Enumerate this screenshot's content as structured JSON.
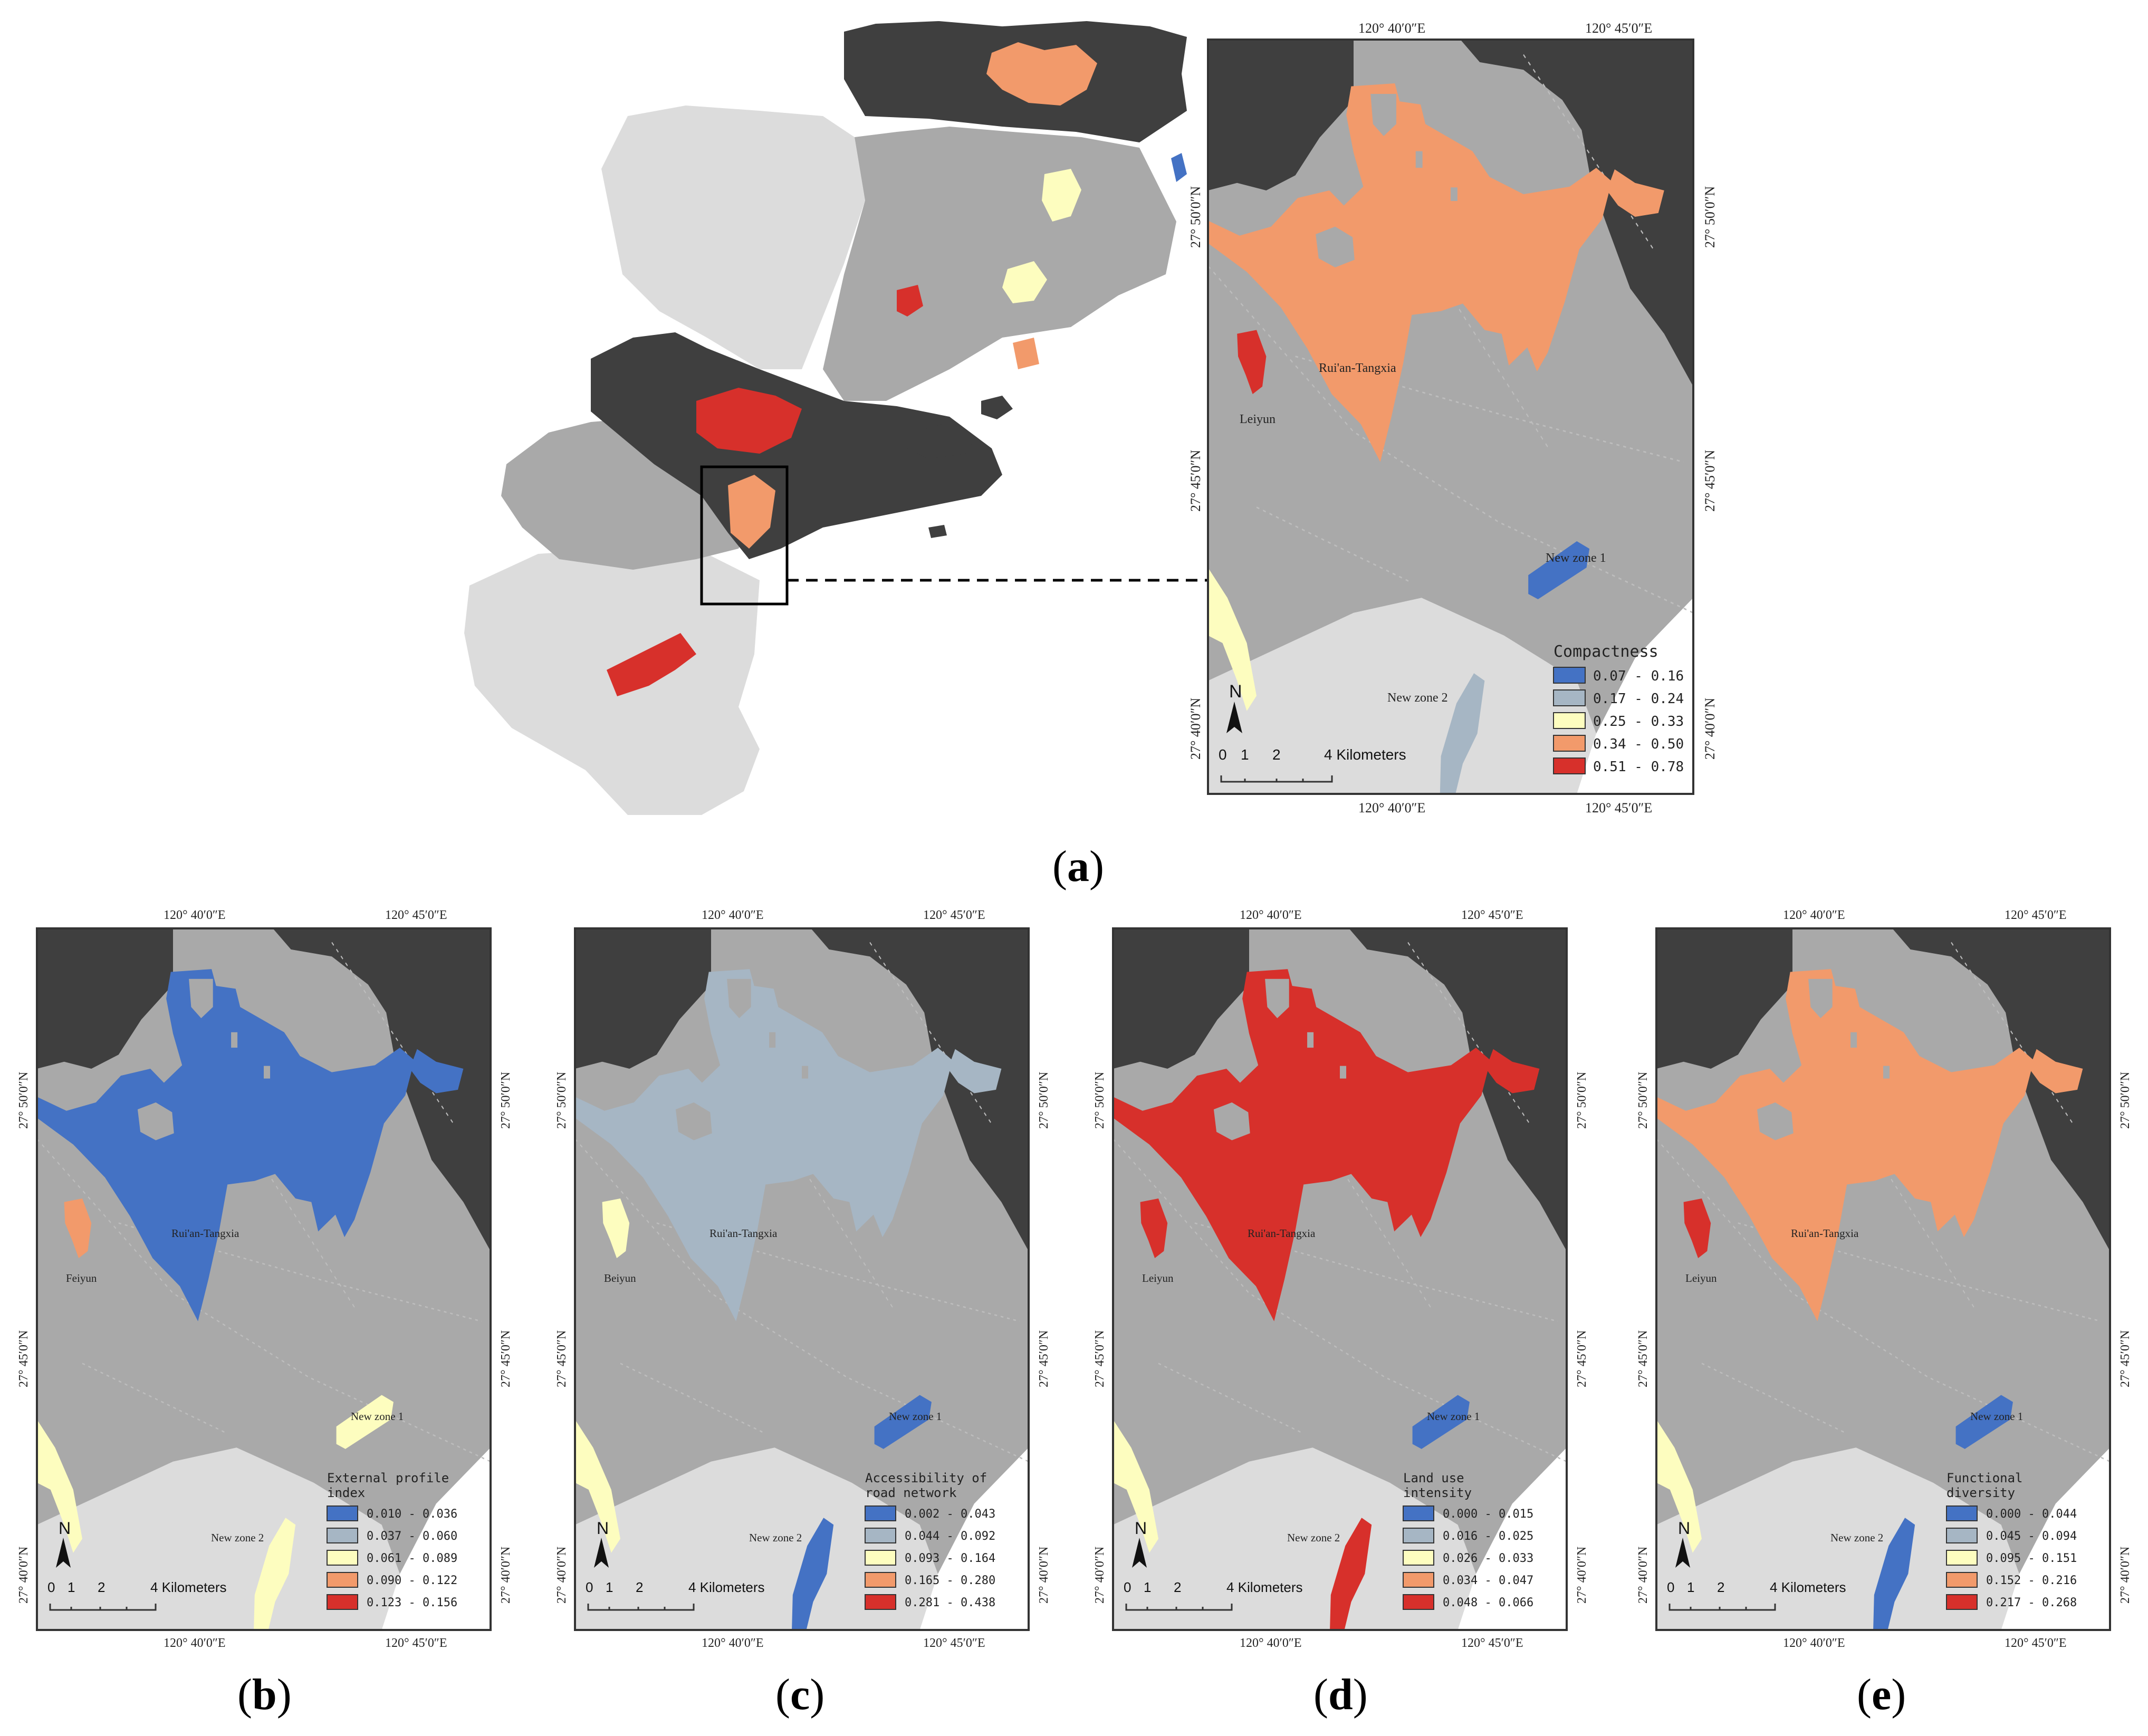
{
  "colors": {
    "dark_region": "#3f3f3f",
    "mid_region": "#a9a9a9",
    "light_region": "#dcdcdc",
    "class_1": "#4472c4",
    "class_2": "#a6b6c4",
    "class_3": "#fdfdbf",
    "class_4": "#f29a6b",
    "class_5": "#d7302b"
  },
  "coords": {
    "lon_left": "120° 40′0″E",
    "lon_right": "120° 45′0″E",
    "lat_top": "27° 50′0″N",
    "lat_mid": "27° 45′0″N",
    "lat_bottom": "27° 40′0″N"
  },
  "scale": {
    "ticks": [
      "0",
      "1",
      "2"
    ],
    "end_label": "4 Kilometers"
  },
  "north_label": "N",
  "place_labels": {
    "main": "Rui'an-Tangxia",
    "west_feiyun": "Feiyun",
    "west_leiyun": "Leiyun",
    "west_beiyun": "Beiyun",
    "zone1": "New zone 1",
    "zone2": "New zone 2"
  },
  "panels": {
    "a": {
      "caption": "a",
      "legend_title": "Compactness",
      "legend_items": [
        "0.07 - 0.16",
        "0.17 - 0.24",
        "0.25 - 0.33",
        "0.34 - 0.50",
        "0.51 - 0.78"
      ],
      "main_class": "class_4"
    },
    "b": {
      "caption": "b",
      "legend_title_1": "External profile",
      "legend_title_2": "index",
      "legend_items": [
        "0.010 - 0.036",
        "0.037 - 0.060",
        "0.061 - 0.089",
        "0.090 - 0.122",
        "0.123 - 0.156"
      ],
      "main_class": "class_1"
    },
    "c": {
      "caption": "c",
      "legend_title_1": "Accessibility of",
      "legend_title_2": "road network",
      "legend_items": [
        "0.002 - 0.043",
        "0.044 - 0.092",
        "0.093 - 0.164",
        "0.165 - 0.280",
        "0.281 - 0.438"
      ],
      "main_class": "class_2"
    },
    "d": {
      "caption": "d",
      "legend_title_1": "Land use",
      "legend_title_2": "intensity",
      "legend_items": [
        "0.000 - 0.015",
        "0.016 - 0.025",
        "0.026 - 0.033",
        "0.034 - 0.047",
        "0.048 - 0.066"
      ],
      "main_class": "class_5"
    },
    "e": {
      "caption": "e",
      "legend_title_1": "Functional",
      "legend_title_2": "diversity",
      "legend_items": [
        "0.000 - 0.044",
        "0.045 - 0.094",
        "0.095 - 0.151",
        "0.152 - 0.216",
        "0.217 - 0.268"
      ],
      "main_class": "class_4"
    }
  }
}
